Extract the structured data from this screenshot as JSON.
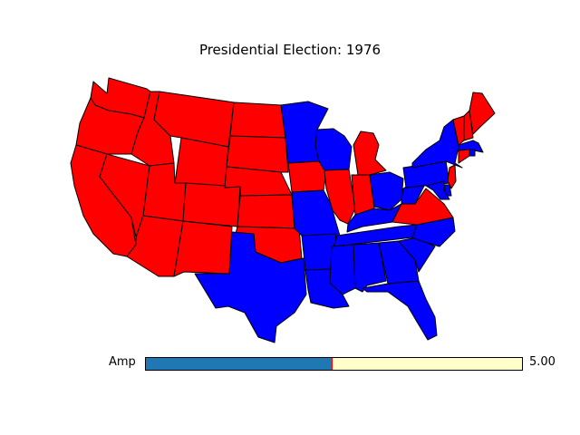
{
  "title": "Presidential Election: 1976",
  "colors": {
    "dem": "#0000ff",
    "rep": "#ff0000",
    "slider_fill": "#1f77b4",
    "slider_bg": "#ffffcc"
  },
  "slider": {
    "label": "Amp",
    "value_text": "5.00",
    "fraction": 0.495
  },
  "states": [
    {
      "name": "Washington",
      "party": "rep"
    },
    {
      "name": "Oregon",
      "party": "rep"
    },
    {
      "name": "California",
      "party": "rep"
    },
    {
      "name": "Idaho",
      "party": "rep"
    },
    {
      "name": "Nevada",
      "party": "rep"
    },
    {
      "name": "Montana",
      "party": "rep"
    },
    {
      "name": "Wyoming",
      "party": "rep"
    },
    {
      "name": "Utah",
      "party": "rep"
    },
    {
      "name": "Arizona",
      "party": "rep"
    },
    {
      "name": "Colorado",
      "party": "rep"
    },
    {
      "name": "New Mexico",
      "party": "rep"
    },
    {
      "name": "North Dakota",
      "party": "rep"
    },
    {
      "name": "South Dakota",
      "party": "rep"
    },
    {
      "name": "Nebraska",
      "party": "rep"
    },
    {
      "name": "Kansas",
      "party": "rep"
    },
    {
      "name": "Oklahoma",
      "party": "rep"
    },
    {
      "name": "Texas",
      "party": "dem"
    },
    {
      "name": "Minnesota",
      "party": "dem"
    },
    {
      "name": "Iowa",
      "party": "rep"
    },
    {
      "name": "Missouri",
      "party": "dem"
    },
    {
      "name": "Arkansas",
      "party": "dem"
    },
    {
      "name": "Louisiana",
      "party": "dem"
    },
    {
      "name": "Wisconsin",
      "party": "dem"
    },
    {
      "name": "Illinois",
      "party": "rep"
    },
    {
      "name": "Michigan",
      "party": "rep"
    },
    {
      "name": "Indiana",
      "party": "rep"
    },
    {
      "name": "Ohio",
      "party": "dem"
    },
    {
      "name": "Kentucky",
      "party": "dem"
    },
    {
      "name": "Tennessee",
      "party": "dem"
    },
    {
      "name": "Mississippi",
      "party": "dem"
    },
    {
      "name": "Alabama",
      "party": "dem"
    },
    {
      "name": "Georgia",
      "party": "dem"
    },
    {
      "name": "Florida",
      "party": "dem"
    },
    {
      "name": "South Carolina",
      "party": "dem"
    },
    {
      "name": "North Carolina",
      "party": "dem"
    },
    {
      "name": "Virginia",
      "party": "rep"
    },
    {
      "name": "West Virginia",
      "party": "dem"
    },
    {
      "name": "Pennsylvania",
      "party": "dem"
    },
    {
      "name": "New York",
      "party": "dem"
    },
    {
      "name": "Vermont",
      "party": "rep"
    },
    {
      "name": "New Hampshire",
      "party": "rep"
    },
    {
      "name": "Maine",
      "party": "rep"
    },
    {
      "name": "Massachusetts",
      "party": "dem"
    },
    {
      "name": "Rhode Island",
      "party": "dem"
    },
    {
      "name": "Connecticut",
      "party": "rep"
    },
    {
      "name": "New Jersey",
      "party": "rep"
    },
    {
      "name": "Delaware",
      "party": "dem"
    },
    {
      "name": "Maryland",
      "party": "dem"
    }
  ]
}
